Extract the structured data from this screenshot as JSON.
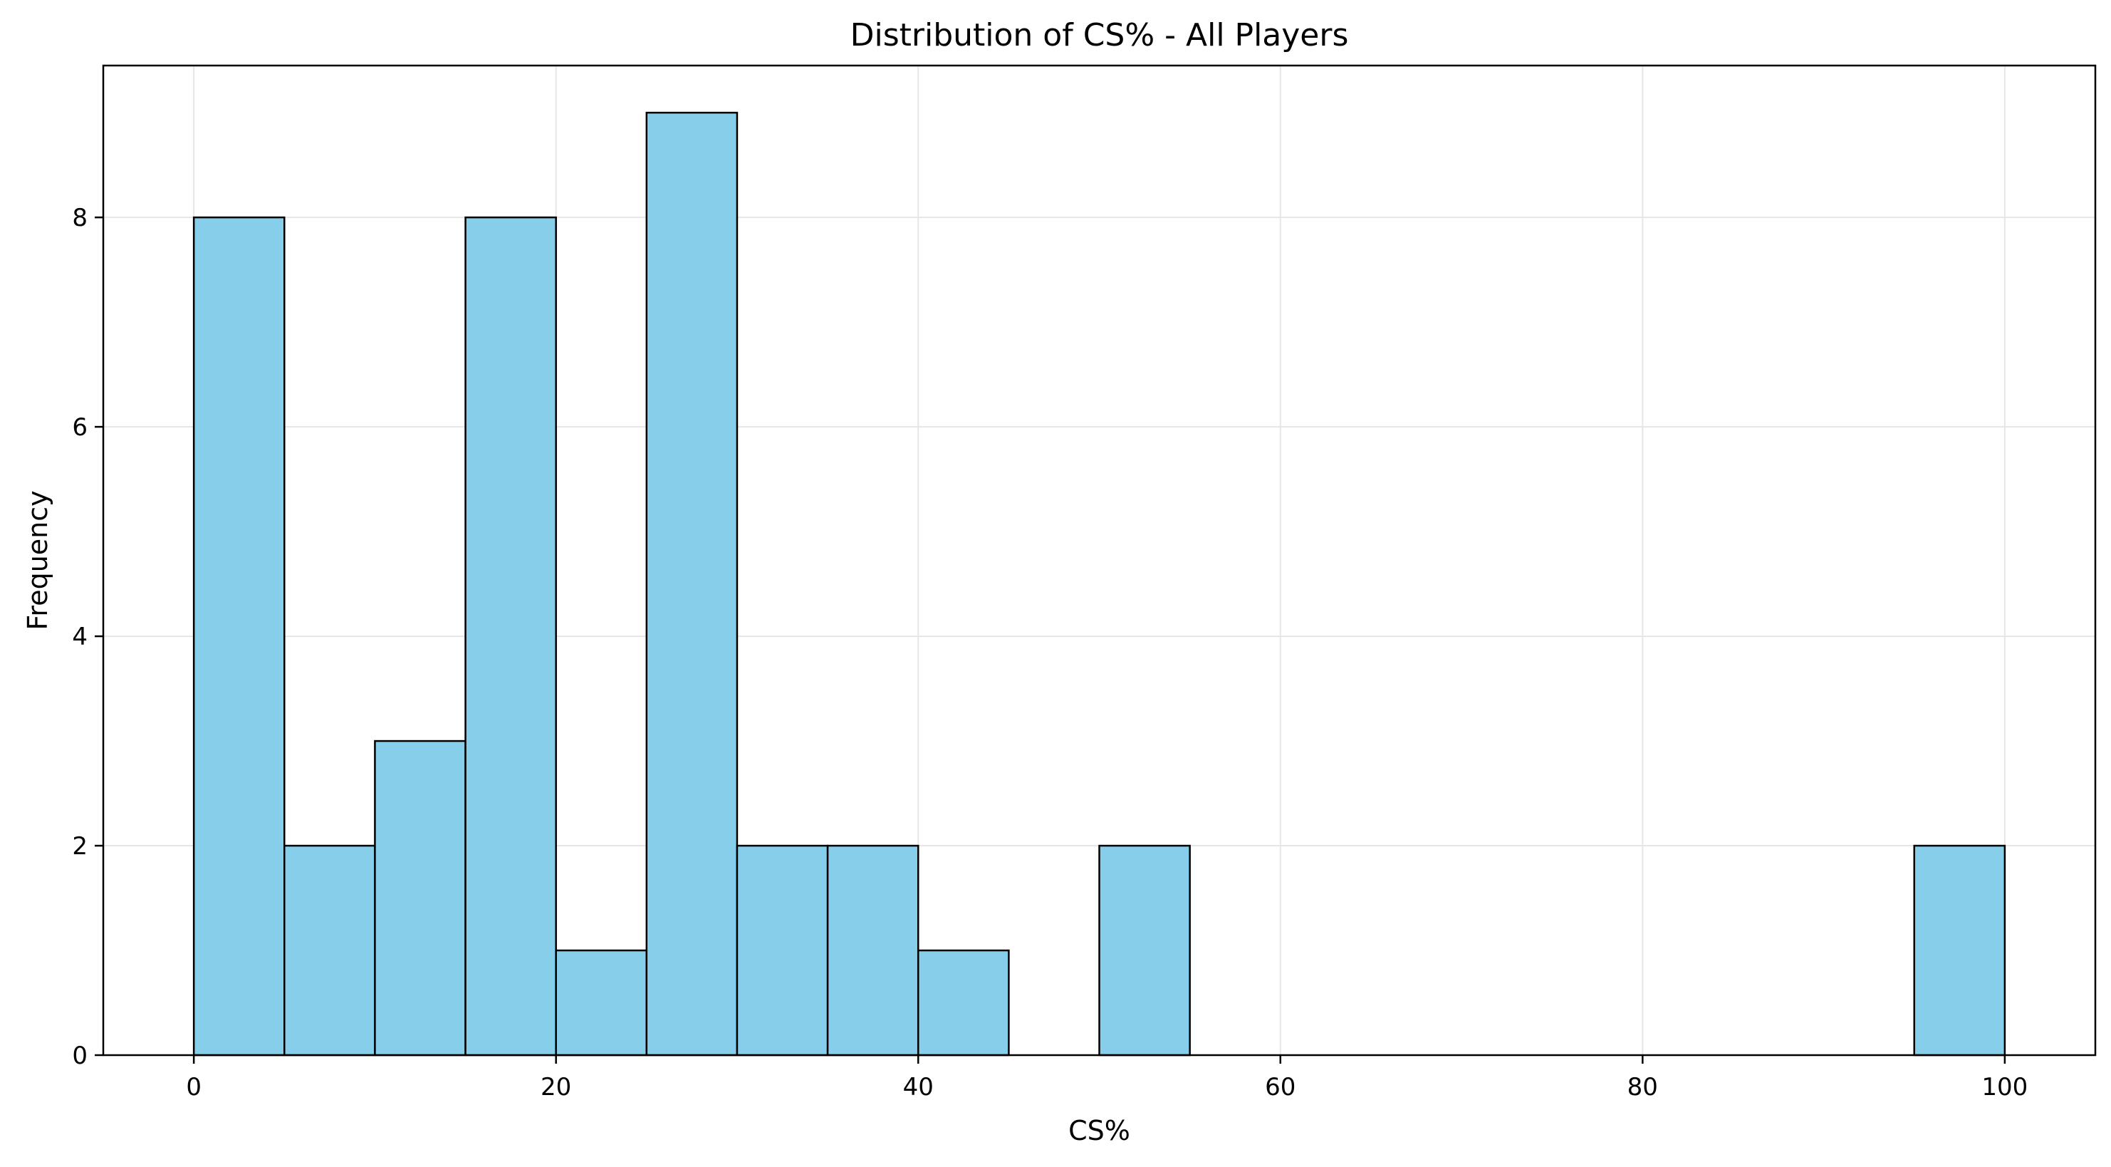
{
  "chart_data": {
    "type": "bar",
    "subtype": "histogram",
    "title": "Distribution of CS% - All Players",
    "xlabel": "CS%",
    "ylabel": "Frequency",
    "bin_width": 5,
    "bins": [
      {
        "start": 0,
        "end": 5,
        "count": 8
      },
      {
        "start": 5,
        "end": 10,
        "count": 2
      },
      {
        "start": 10,
        "end": 15,
        "count": 3
      },
      {
        "start": 15,
        "end": 20,
        "count": 8
      },
      {
        "start": 20,
        "end": 25,
        "count": 1
      },
      {
        "start": 25,
        "end": 30,
        "count": 9
      },
      {
        "start": 30,
        "end": 35,
        "count": 2
      },
      {
        "start": 35,
        "end": 40,
        "count": 2
      },
      {
        "start": 40,
        "end": 45,
        "count": 1
      },
      {
        "start": 45,
        "end": 50,
        "count": 0
      },
      {
        "start": 50,
        "end": 55,
        "count": 2
      },
      {
        "start": 55,
        "end": 60,
        "count": 0
      },
      {
        "start": 60,
        "end": 65,
        "count": 0
      },
      {
        "start": 65,
        "end": 70,
        "count": 0
      },
      {
        "start": 70,
        "end": 75,
        "count": 0
      },
      {
        "start": 75,
        "end": 80,
        "count": 0
      },
      {
        "start": 80,
        "end": 85,
        "count": 0
      },
      {
        "start": 85,
        "end": 90,
        "count": 0
      },
      {
        "start": 90,
        "end": 95,
        "count": 0
      },
      {
        "start": 95,
        "end": 100,
        "count": 2
      }
    ],
    "xlim": [
      -5,
      105
    ],
    "ylim": [
      0,
      9.45
    ],
    "xticks": [
      0,
      20,
      40,
      60,
      80,
      100
    ],
    "yticks": [
      0,
      2,
      4,
      6,
      8
    ],
    "grid": true,
    "legend": "none",
    "colors": {
      "bar_fill": "#87CEEB",
      "bar_edge": "#000000",
      "grid": "#e6e6e6",
      "axes": "#000000"
    }
  }
}
